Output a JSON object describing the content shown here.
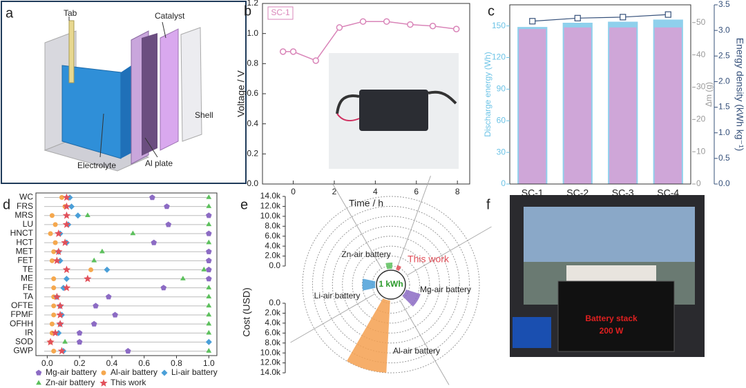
{
  "panel_labels": [
    "a",
    "b",
    "c",
    "d",
    "e",
    "f"
  ],
  "diagram": {
    "labels": [
      "Tab",
      "Catalyst",
      "Shell",
      "Electrolyte",
      "Al plate"
    ]
  },
  "photo": {
    "labels": [
      "Battery stack",
      "200 W"
    ]
  },
  "chart_data": [
    {
      "type": "line",
      "x": [
        -0.5,
        0,
        1.1,
        2.25,
        3.4,
        4.55,
        5.7,
        6.8,
        7.95
      ],
      "series": [
        {
          "name": "SC-1",
          "color": "#d984b8",
          "values": [
            0.88,
            0.88,
            0.82,
            1.04,
            1.08,
            1.08,
            1.06,
            1.05,
            1.03
          ]
        }
      ],
      "xlabel": "Time / h",
      "ylabel": "Voltage / V",
      "xlim": [
        -1.5,
        8.6
      ],
      "xticks": [
        0,
        2,
        4,
        6,
        8
      ],
      "ylim": [
        0,
        1.2
      ],
      "yticks": [
        {
          "value": 0,
          "label": "0.0"
        },
        0.2,
        0.4,
        0.6,
        0.8,
        {
          "value": 1,
          "label": "1.0"
        },
        1.2
      ]
    },
    {
      "type": "bar_line",
      "categories": [
        "SC-1",
        "SC-2",
        "SC-3",
        "SC-4"
      ],
      "series": [
        {
          "name": "Discharge energy (Wh)",
          "color": "#8fd0ec",
          "axis": "y",
          "values": [
            149,
            153,
            154,
            156
          ]
        },
        {
          "name": "Δm (g)",
          "color": "#cfa6d8",
          "axis": "y3",
          "values": [
            48,
            48.5,
            48.5,
            48.5
          ]
        },
        {
          "name": "Energy density (kWh kg⁻¹)",
          "color": "#35507a",
          "axis": "y2",
          "values": [
            3.18,
            3.24,
            3.26,
            3.31
          ]
        }
      ],
      "ylim": [
        0,
        170
      ],
      "yticks": [
        0,
        30,
        60,
        90,
        120,
        150
      ],
      "y3lim": [
        0,
        55.5
      ],
      "y3ticks": [
        0,
        10,
        20,
        30,
        40,
        50
      ],
      "y2lim": [
        0,
        3.5
      ],
      "y2ticks": [
        {
          "value": 0,
          "label": "0.0"
        },
        0.5,
        {
          "value": 1,
          "label": "1.0"
        },
        1.5,
        {
          "value": 2,
          "label": "2.0"
        },
        2.5,
        {
          "value": 3,
          "label": "3.0"
        },
        3.5
      ]
    },
    {
      "type": "dot",
      "categories": [
        "WC",
        "FRS",
        "MRS",
        "LU",
        "HNCT",
        "HCT",
        "MET",
        "FET",
        "TE",
        "ME",
        "FE",
        "TA",
        "OFTE",
        "FPMF",
        "OFHH",
        "IR",
        "SOD",
        "GWP"
      ],
      "series": [
        {
          "name": "Mg-air battery",
          "color": "#8c6bc4",
          "marker": "pentagon",
          "values": [
            0.65,
            0.74,
            1.0,
            0.75,
            1.0,
            0.66,
            1.0,
            1.0,
            1.0,
            1.0,
            0.72,
            0.38,
            0.3,
            0.42,
            0.29,
            0.2,
            0.2,
            0.5
          ]
        },
        {
          "name": "Al-air battery",
          "color": "#f5a84e",
          "marker": "circle",
          "values": [
            0.09,
            0.11,
            0.03,
            0.05,
            0.02,
            0.05,
            0.04,
            0.03,
            0.27,
            0.04,
            0.04,
            0.04,
            0.04,
            0.04,
            0.03,
            0.03,
            0.02,
            0.04
          ]
        },
        {
          "name": "Li-air battery",
          "color": "#4a9fd8",
          "marker": "diamond",
          "values": [
            0.14,
            0.15,
            0.19,
            0.13,
            0.08,
            0.12,
            0.07,
            0.08,
            0.37,
            0.12,
            0.1,
            0.06,
            0.08,
            0.09,
            0.08,
            0.07,
            1.0,
            0.1
          ]
        },
        {
          "name": "Zn-air battery",
          "color": "#5cc05c",
          "marker": "triangle",
          "values": [
            1.0,
            1.0,
            0.25,
            1.0,
            0.53,
            1.0,
            0.34,
            0.29,
            0.97,
            0.84,
            1.0,
            1.0,
            1.0,
            1.0,
            1.0,
            1.0,
            0.11,
            1.0
          ]
        },
        {
          "name": "This work",
          "color": "#e2505a",
          "marker": "star",
          "values": [
            0.12,
            0.12,
            0.12,
            0.12,
            0.07,
            0.11,
            0.07,
            0.06,
            0.12,
            0.25,
            0.12,
            0.06,
            0.08,
            0.08,
            0.08,
            0.05,
            0.02,
            0.09
          ]
        }
      ],
      "xlim": [
        -0.07,
        1.05
      ],
      "xticks": [
        {
          "value": 0,
          "label": "0.0"
        },
        0.2,
        0.4,
        0.6,
        0.8,
        {
          "value": 1,
          "label": "1.0"
        }
      ]
    },
    {
      "type": "polar_bar",
      "categories": [
        "Zn-air battery",
        "This work",
        "Mg-air battery",
        "Al-air battery",
        "Li-air battery"
      ],
      "values": [
        700,
        400,
        2500,
        14000,
        2000
      ],
      "colors": [
        "#5cc05c",
        "#e2505a",
        "#8c6bc4",
        "#f5a050",
        "#4a9fd8"
      ],
      "center_label": "1 kWh",
      "ylabel": "Cost (USD)",
      "ylim": [
        0,
        14000
      ],
      "yticks": [
        {
          "value": 0,
          "label": "0.0"
        },
        {
          "value": 2000,
          "label": "2.0k"
        },
        {
          "value": 4000,
          "label": "4.0k"
        },
        {
          "value": 6000,
          "label": "6.0k"
        },
        {
          "value": 8000,
          "label": "8.0k"
        },
        {
          "value": 10000,
          "label": "10.0k"
        },
        {
          "value": 12000,
          "label": "12.0k"
        },
        {
          "value": 14000,
          "label": "14.0k"
        }
      ]
    }
  ]
}
